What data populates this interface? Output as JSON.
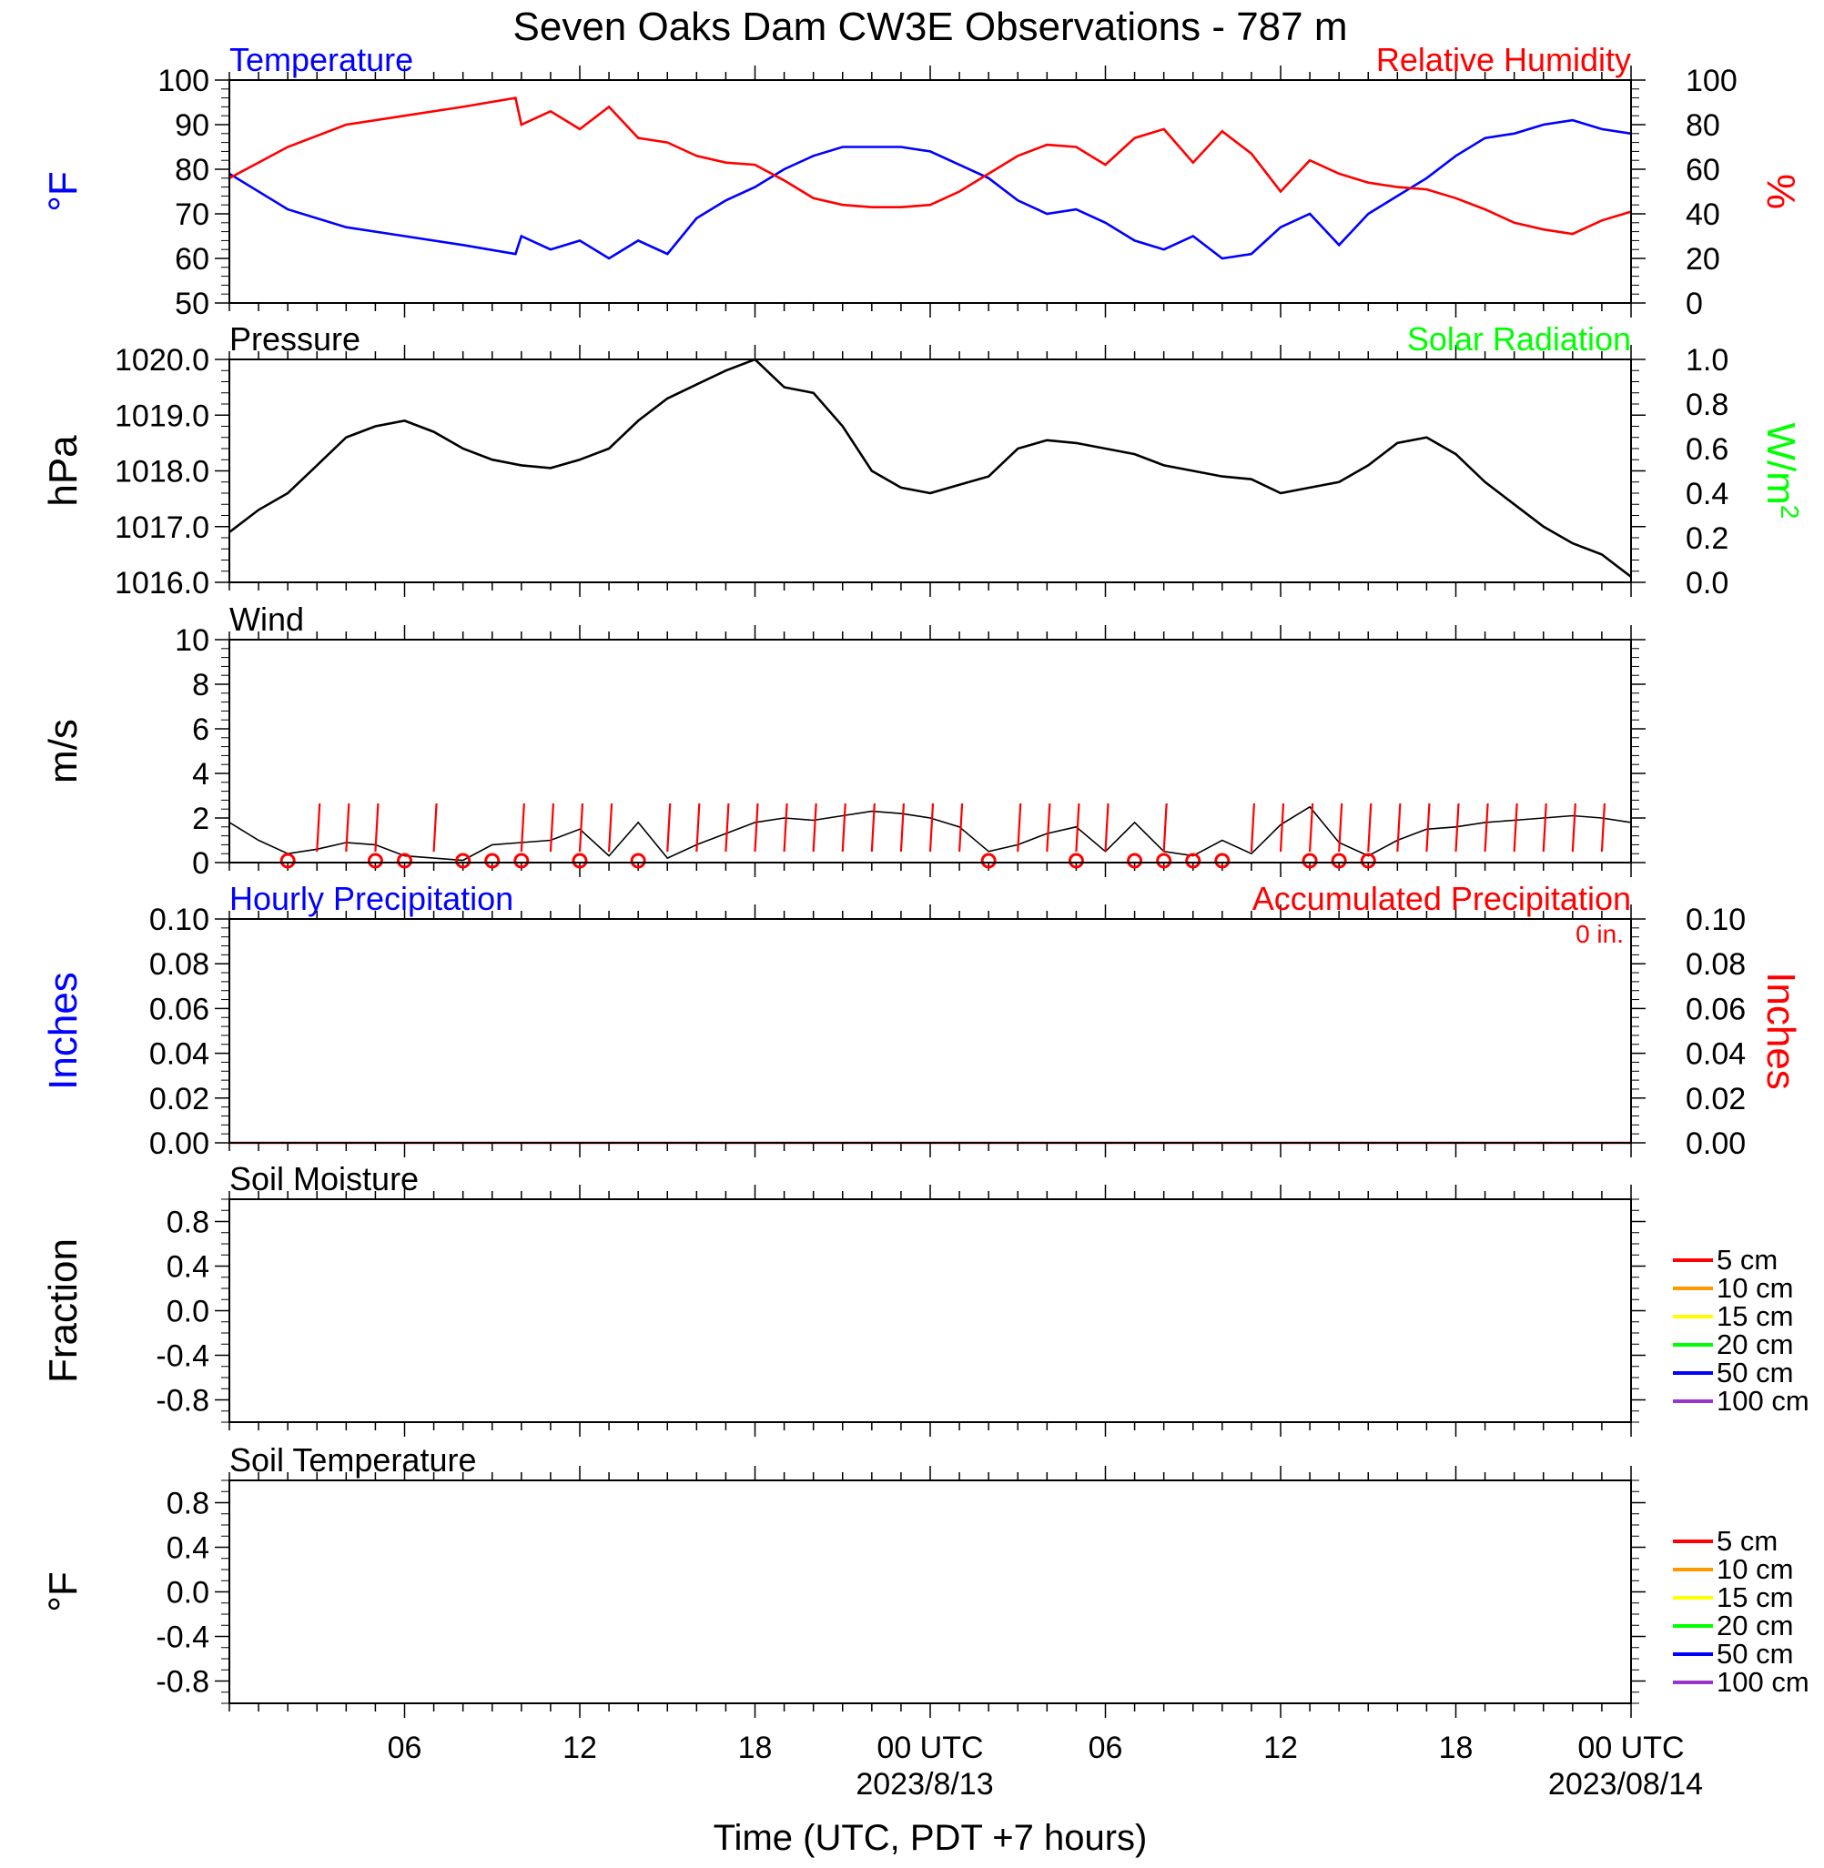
{
  "title": "Seven Oaks Dam CW3E Observations - 787 m",
  "x_axis": {
    "title": "Time (UTC, PDT +7 hours)",
    "tick_labels": [
      "06",
      "12",
      "18",
      "00 UTC",
      "06",
      "12",
      "18",
      "00 UTC"
    ],
    "date_labels": [
      "2023/8/13",
      "2023/08/14"
    ]
  },
  "colors": {
    "temperature": "#0000ff",
    "humidity": "#ff0000",
    "pressure": "#000000",
    "solar": "#00ff00",
    "wind": "#000000",
    "wind_barb": "#ff0000",
    "hourly_precip": "#0000ff",
    "accum_precip": "#ff0000",
    "soil_5": "#ff0000",
    "soil_10": "#ff9900",
    "soil_15": "#ffff00",
    "soil_20": "#00ff00",
    "soil_50": "#0000ff",
    "soil_100": "#9933cc"
  },
  "chart_data": [
    {
      "type": "line",
      "panel": "temperature-humidity",
      "title_left": "Temperature",
      "title_right": "Relative Humidity",
      "ylabel_left": "°F",
      "ylabel_right": "%",
      "ylim_left": [
        50,
        100
      ],
      "ylim_right": [
        0,
        100
      ],
      "yticks_left": [
        "100",
        "90",
        "80",
        "70",
        "60",
        "50"
      ],
      "yticks_right": [
        "100",
        "80",
        "60",
        "40",
        "20",
        "0"
      ],
      "x_hours": [
        0,
        2,
        4,
        6,
        8,
        9.8,
        10,
        11,
        12,
        13,
        14,
        15,
        16,
        17,
        18,
        19,
        20,
        21,
        22,
        23,
        24,
        25,
        26,
        27,
        28,
        29,
        30,
        31,
        32,
        33,
        34,
        35,
        36,
        37,
        38,
        39,
        40,
        41,
        42,
        43,
        44,
        45,
        46,
        47,
        48
      ],
      "series": [
        {
          "name": "Temperature",
          "axis": "left",
          "values": [
            79,
            71,
            67,
            65,
            63,
            61,
            65,
            62,
            64,
            60,
            64,
            61,
            69,
            73,
            76,
            80,
            83,
            85,
            85,
            85,
            84,
            81,
            78,
            73,
            70,
            71,
            68,
            64,
            62,
            65,
            60,
            61,
            67,
            70,
            63,
            70,
            74,
            78,
            83,
            87,
            88,
            90,
            91,
            89,
            88
          ]
        },
        {
          "name": "Relative Humidity",
          "axis": "right",
          "values": [
            56,
            70,
            80,
            84,
            88,
            92,
            80,
            86,
            78,
            88,
            74,
            72,
            66,
            63,
            62,
            55,
            47,
            44,
            43,
            43,
            44,
            50,
            58,
            66,
            71,
            70,
            62,
            74,
            78,
            63,
            77,
            67,
            50,
            64,
            58,
            54,
            52,
            51,
            47,
            42,
            36,
            33,
            31,
            37,
            41
          ]
        }
      ]
    },
    {
      "type": "line",
      "panel": "pressure",
      "title_left": "Pressure",
      "title_right": "Solar Radiation",
      "ylabel_left": "hPa",
      "ylabel_right_base": "W/m",
      "ylabel_right_sup": "2",
      "ylim_left": [
        1016.0,
        1020.0
      ],
      "ylim_right": [
        0.0,
        1.0
      ],
      "yticks_left": [
        "1020.0",
        "1019.0",
        "1018.0",
        "1017.0",
        "1016.0"
      ],
      "yticks_right": [
        "1.0",
        "0.8",
        "0.6",
        "0.4",
        "0.2",
        "0.0"
      ],
      "x_hours": [
        0,
        1,
        2,
        3,
        4,
        5,
        6,
        7,
        8,
        9,
        10,
        11,
        12,
        13,
        14,
        15,
        16,
        17,
        18,
        19,
        20,
        21,
        22,
        23,
        24,
        25,
        26,
        27,
        28,
        29,
        30,
        31,
        32,
        33,
        34,
        35,
        36,
        37,
        38,
        39,
        40,
        41,
        42,
        43,
        44,
        45,
        46,
        47,
        48
      ],
      "series": [
        {
          "name": "Pressure",
          "values": [
            1016.9,
            1017.3,
            1017.6,
            1018.1,
            1018.6,
            1018.8,
            1018.9,
            1018.7,
            1018.4,
            1018.2,
            1018.1,
            1018.05,
            1018.2,
            1018.4,
            1018.9,
            1019.3,
            1019.55,
            1019.8,
            1020.0,
            1019.5,
            1019.4,
            1018.8,
            1018.0,
            1017.7,
            1017.6,
            1017.75,
            1017.9,
            1018.4,
            1018.55,
            1018.5,
            1018.4,
            1018.3,
            1018.1,
            1018.0,
            1017.9,
            1017.85,
            1017.6,
            1017.7,
            1017.8,
            1018.1,
            1018.5,
            1018.6,
            1018.3,
            1017.8,
            1017.4,
            1017.0,
            1016.7,
            1016.5,
            1016.1
          ]
        }
      ]
    },
    {
      "type": "line",
      "panel": "wind",
      "title_left": "Wind",
      "ylabel_left": "m/s",
      "ylim_left": [
        0,
        10
      ],
      "yticks_left": [
        "10",
        "8",
        "6",
        "4",
        "2",
        "0"
      ],
      "x_hours": [
        0,
        1,
        2,
        3,
        4,
        5,
        6,
        7,
        8,
        9,
        10,
        11,
        12,
        13,
        14,
        15,
        16,
        17,
        18,
        19,
        20,
        21,
        22,
        23,
        24,
        25,
        26,
        27,
        28,
        29,
        30,
        31,
        32,
        33,
        34,
        35,
        36,
        37,
        38,
        39,
        40,
        41,
        42,
        43,
        44,
        45,
        46,
        47,
        48
      ],
      "series": [
        {
          "name": "Wind speed",
          "values": [
            1.8,
            1.0,
            0.4,
            0.6,
            0.9,
            0.8,
            0.3,
            0.2,
            0.1,
            0.8,
            0.9,
            1.0,
            1.5,
            0.3,
            1.8,
            0.2,
            0.8,
            1.3,
            1.8,
            2.0,
            1.9,
            2.1,
            2.3,
            2.2,
            2.0,
            1.6,
            0.5,
            0.8,
            1.3,
            1.6,
            0.5,
            1.8,
            0.5,
            0.3,
            1.0,
            0.4,
            1.7,
            2.5,
            0.9,
            0.3,
            1.0,
            1.5,
            1.6,
            1.8,
            1.9,
            2.0,
            2.1,
            2.0,
            1.8
          ]
        }
      ],
      "barb_hours": [
        3,
        4,
        5,
        7,
        10,
        11,
        12,
        13,
        15,
        16,
        17,
        18,
        19,
        20,
        21,
        22,
        23,
        24,
        25,
        27,
        28,
        29,
        30,
        32,
        35,
        36,
        37,
        38,
        39,
        40,
        41,
        42,
        43,
        44,
        45,
        46,
        47
      ],
      "calm_hours": [
        2,
        5,
        6,
        8,
        9,
        10,
        12,
        14,
        26,
        29,
        31,
        32,
        33,
        34,
        37,
        38,
        39
      ]
    },
    {
      "type": "line",
      "panel": "precipitation",
      "title_left": "Hourly Precipitation",
      "title_right": "Accumulated Precipitation",
      "total_label": "0 in.",
      "ylabel_left": "Inches",
      "ylabel_right": "Inches",
      "ylim_left": [
        0.0,
        0.1
      ],
      "ylim_right": [
        0.0,
        0.1
      ],
      "yticks_left": [
        "0.10",
        "0.08",
        "0.06",
        "0.04",
        "0.02",
        "0.00"
      ],
      "yticks_right": [
        "0.10",
        "0.08",
        "0.06",
        "0.04",
        "0.02",
        "0.00"
      ],
      "x_hours": [
        0,
        48
      ],
      "series": [
        {
          "name": "Accumulated Precipitation",
          "values": [
            0,
            0
          ]
        }
      ]
    },
    {
      "type": "line",
      "panel": "soil-moisture",
      "title_left": "Soil Moisture",
      "ylabel_left": "Fraction",
      "ylim_left": [
        -1.0,
        1.0
      ],
      "yticks_left": [
        "0.8",
        "0.4",
        "0.0",
        "-0.4",
        "-0.8"
      ],
      "legend": [
        "5 cm",
        "10 cm",
        "15 cm",
        "20 cm",
        "50 cm",
        "100 cm"
      ],
      "legend_position": "right"
    },
    {
      "type": "line",
      "panel": "soil-temperature",
      "title_left": "Soil Temperature",
      "ylabel_left": "°F",
      "ylim_left": [
        -1.0,
        1.0
      ],
      "yticks_left": [
        "0.8",
        "0.4",
        "0.0",
        "-0.4",
        "-0.8"
      ],
      "legend": [
        "5 cm",
        "10 cm",
        "15 cm",
        "20 cm",
        "50 cm",
        "100 cm"
      ],
      "legend_position": "right"
    }
  ]
}
